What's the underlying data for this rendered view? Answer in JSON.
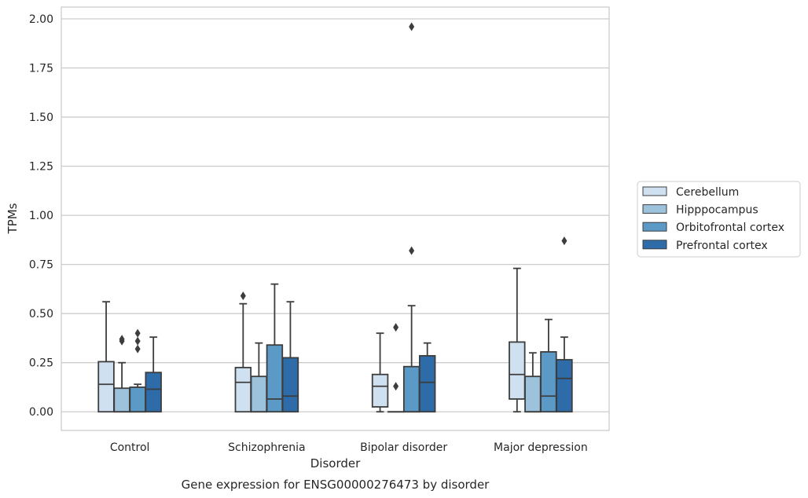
{
  "chart_data": {
    "type": "box",
    "title": "Gene expression for ENSG00000276473 by disorder",
    "xlabel": "Disorder",
    "ylabel": "TPMs",
    "ylim": [
      -0.095,
      2.06
    ],
    "yticks": [
      "0.00",
      "0.25",
      "0.50",
      "0.75",
      "1.00",
      "1.25",
      "1.50",
      "1.75",
      "2.00"
    ],
    "grid": true,
    "legend_position": "right",
    "categories": [
      "Control",
      "Schizophrenia",
      "Bipolar disorder",
      "Major depression"
    ],
    "series": [
      {
        "name": "Cerebellum",
        "color": "#cfe0f0",
        "boxes": [
          {
            "whislo": 0.0,
            "q1": 0.0,
            "med": 0.14,
            "q3": 0.255,
            "whishi": 0.56,
            "fliers": []
          },
          {
            "whislo": 0.0,
            "q1": 0.0,
            "med": 0.15,
            "q3": 0.225,
            "whishi": 0.55,
            "fliers": [
              0.59
            ]
          },
          {
            "whislo": 0.0,
            "q1": 0.025,
            "med": 0.13,
            "q3": 0.19,
            "whishi": 0.4,
            "fliers": []
          },
          {
            "whislo": 0.0,
            "q1": 0.065,
            "med": 0.19,
            "q3": 0.355,
            "whishi": 0.73,
            "fliers": []
          }
        ]
      },
      {
        "name": "Hipppocampus",
        "color": "#9cc2dc",
        "boxes": [
          {
            "whislo": 0.0,
            "q1": 0.0,
            "med": 0.0,
            "q3": 0.12,
            "whishi": 0.25,
            "fliers": [
              0.36,
              0.37
            ]
          },
          {
            "whislo": 0.0,
            "q1": 0.0,
            "med": 0.0,
            "q3": 0.18,
            "whishi": 0.35,
            "fliers": []
          },
          {
            "whislo": 0.0,
            "q1": 0.0,
            "med": 0.0,
            "q3": 0.0,
            "whishi": 0.0,
            "fliers": [
              0.13,
              0.43
            ]
          },
          {
            "whislo": 0.0,
            "q1": 0.0,
            "med": 0.0,
            "q3": 0.18,
            "whishi": 0.3,
            "fliers": []
          }
        ]
      },
      {
        "name": "Orbitofrontal cortex",
        "color": "#5b9ac6",
        "boxes": [
          {
            "whislo": 0.0,
            "q1": 0.0,
            "med": 0.0,
            "q3": 0.125,
            "whishi": 0.14,
            "fliers": [
              0.32,
              0.36,
              0.4
            ]
          },
          {
            "whislo": 0.0,
            "q1": 0.0,
            "med": 0.065,
            "q3": 0.34,
            "whishi": 0.65,
            "fliers": []
          },
          {
            "whislo": 0.0,
            "q1": 0.0,
            "med": 0.0,
            "q3": 0.23,
            "whishi": 0.54,
            "fliers": [
              0.82,
              1.96
            ]
          },
          {
            "whislo": 0.0,
            "q1": 0.0,
            "med": 0.08,
            "q3": 0.305,
            "whishi": 0.47,
            "fliers": []
          }
        ]
      },
      {
        "name": "Prefrontal cortex",
        "color": "#2d6ca8",
        "boxes": [
          {
            "whislo": 0.0,
            "q1": 0.0,
            "med": 0.115,
            "q3": 0.2,
            "whishi": 0.38,
            "fliers": []
          },
          {
            "whislo": 0.0,
            "q1": 0.0,
            "med": 0.08,
            "q3": 0.275,
            "whishi": 0.56,
            "fliers": []
          },
          {
            "whislo": 0.0,
            "q1": 0.0,
            "med": 0.15,
            "q3": 0.285,
            "whishi": 0.35,
            "fliers": []
          },
          {
            "whislo": 0.0,
            "q1": 0.0,
            "med": 0.17,
            "q3": 0.265,
            "whishi": 0.38,
            "fliers": [
              0.87
            ]
          }
        ]
      }
    ]
  }
}
